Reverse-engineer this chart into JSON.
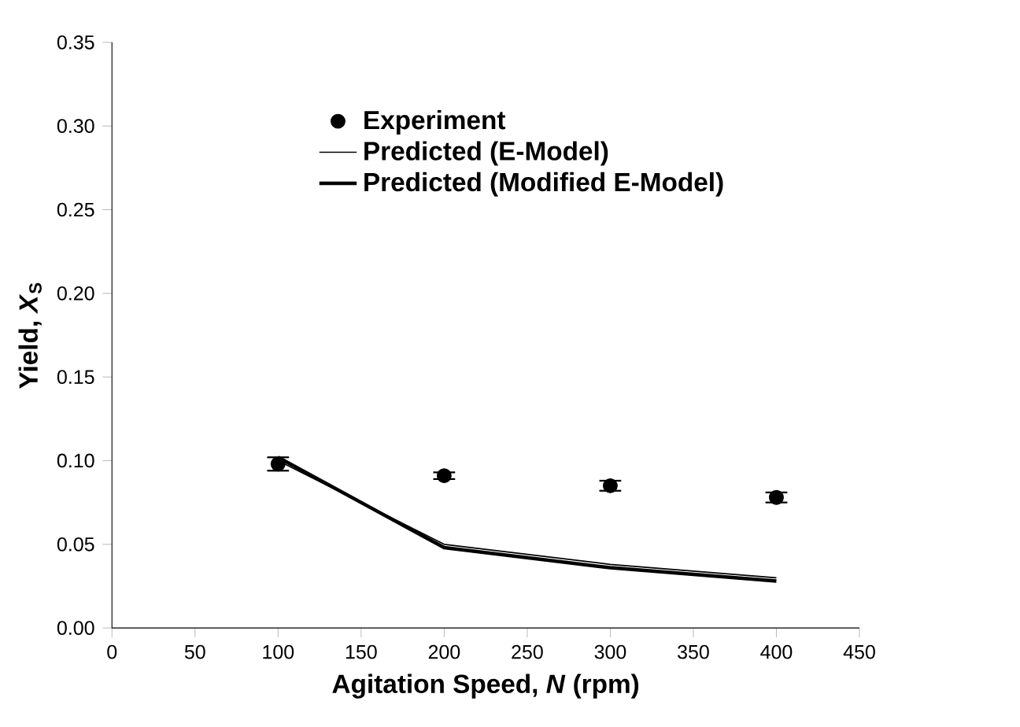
{
  "chart_data": {
    "type": "line",
    "xlabel": "Agitation Speed, *N* (rpm)",
    "ylabel": "Yield, *X*$_{S}$",
    "xlim": [
      0,
      450
    ],
    "xticks": [
      0,
      50,
      100,
      150,
      200,
      250,
      300,
      350,
      400,
      450
    ],
    "ylim": [
      0,
      0.35
    ],
    "yticks": [
      {
        "value": 0,
        "label": "0.00"
      },
      {
        "value": 0.05,
        "label": "0.05"
      },
      {
        "value": 0.1,
        "label": "0.10"
      },
      {
        "value": 0.15,
        "label": "0.15"
      },
      {
        "value": 0.2,
        "label": "0.20"
      },
      {
        "value": 0.25,
        "label": "0.25"
      },
      {
        "value": 0.3,
        "label": "0.30"
      },
      {
        "value": 0.35,
        "label": "0.35"
      }
    ],
    "legend": "top",
    "grid": false,
    "series": [
      {
        "name": "Experiment",
        "type": "scatter",
        "marker": "circle",
        "color": "#000000",
        "x": [
          100,
          200,
          300,
          400
        ],
        "values": [
          0.098,
          0.091,
          0.085,
          0.078
        ],
        "errors": [
          0.004,
          0.002,
          0.003,
          0.003
        ]
      },
      {
        "name": "Predicted (E-Model)",
        "line_style": "solid",
        "color": "#000000",
        "x": [
          100,
          200,
          300,
          400
        ],
        "values": [
          0.1,
          0.05,
          0.038,
          0.03
        ]
      },
      {
        "name": "Predicted (Modified E-Model)",
        "line_style": "solid",
        "color": "#000000",
        "x": [
          100,
          200,
          300,
          400
        ],
        "values": [
          0.102,
          0.048,
          0.036,
          0.028
        ]
      }
    ]
  }
}
